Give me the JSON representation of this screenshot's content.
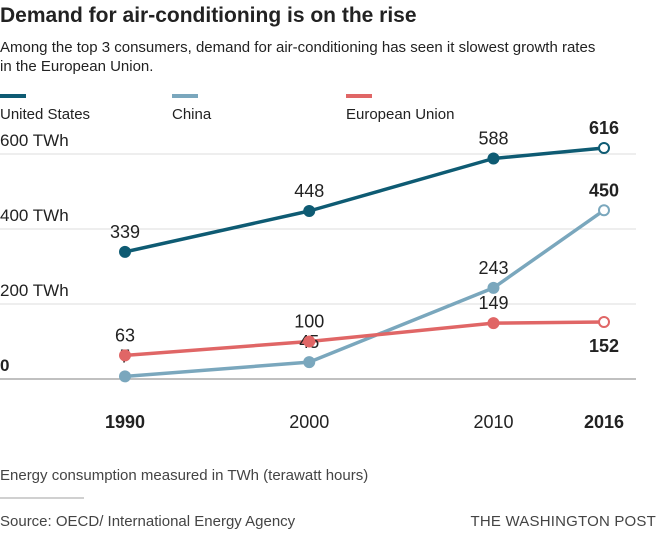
{
  "header": {
    "title": "Demand for air-conditioning is on the rise",
    "subtitle": "Among the top 3 consumers, demand for air-conditioning has seen it slowest growth rates in the European Union."
  },
  "footer": {
    "note": "Energy consumption measured in TWh (terawatt hours)",
    "source": "Source: OECD/ International Energy Agency",
    "brand": "THE WASHINGTON POST"
  },
  "chart_data": {
    "type": "line",
    "title": "Demand for air-conditioning is on the rise",
    "xlabel": "",
    "ylabel": "",
    "x": [
      1990,
      2000,
      2010,
      2016
    ],
    "x_tick_labels": [
      "1990",
      "2000",
      "2010",
      "2016"
    ],
    "bold_x_ticks": [
      "1990",
      "2016"
    ],
    "xlim": [
      1990,
      2016
    ],
    "ylim": [
      0,
      700
    ],
    "y_ticks": [
      0,
      200,
      400,
      600
    ],
    "y_tick_labels": [
      "0",
      "200 TWh",
      "400 TWh",
      "600 TWh"
    ],
    "grid": true,
    "legend_position": "top",
    "series": [
      {
        "name": "United States",
        "color": "#0e5b73",
        "values": [
          339,
          448,
          588,
          616
        ],
        "label_position": "above"
      },
      {
        "name": "China",
        "color": "#7aa7bd",
        "values": [
          7,
          45,
          243,
          450
        ],
        "label_position": "above"
      },
      {
        "name": "European Union",
        "color": "#e06666",
        "values": [
          63,
          100,
          149,
          152
        ],
        "label_position": "above_last_below"
      }
    ]
  }
}
